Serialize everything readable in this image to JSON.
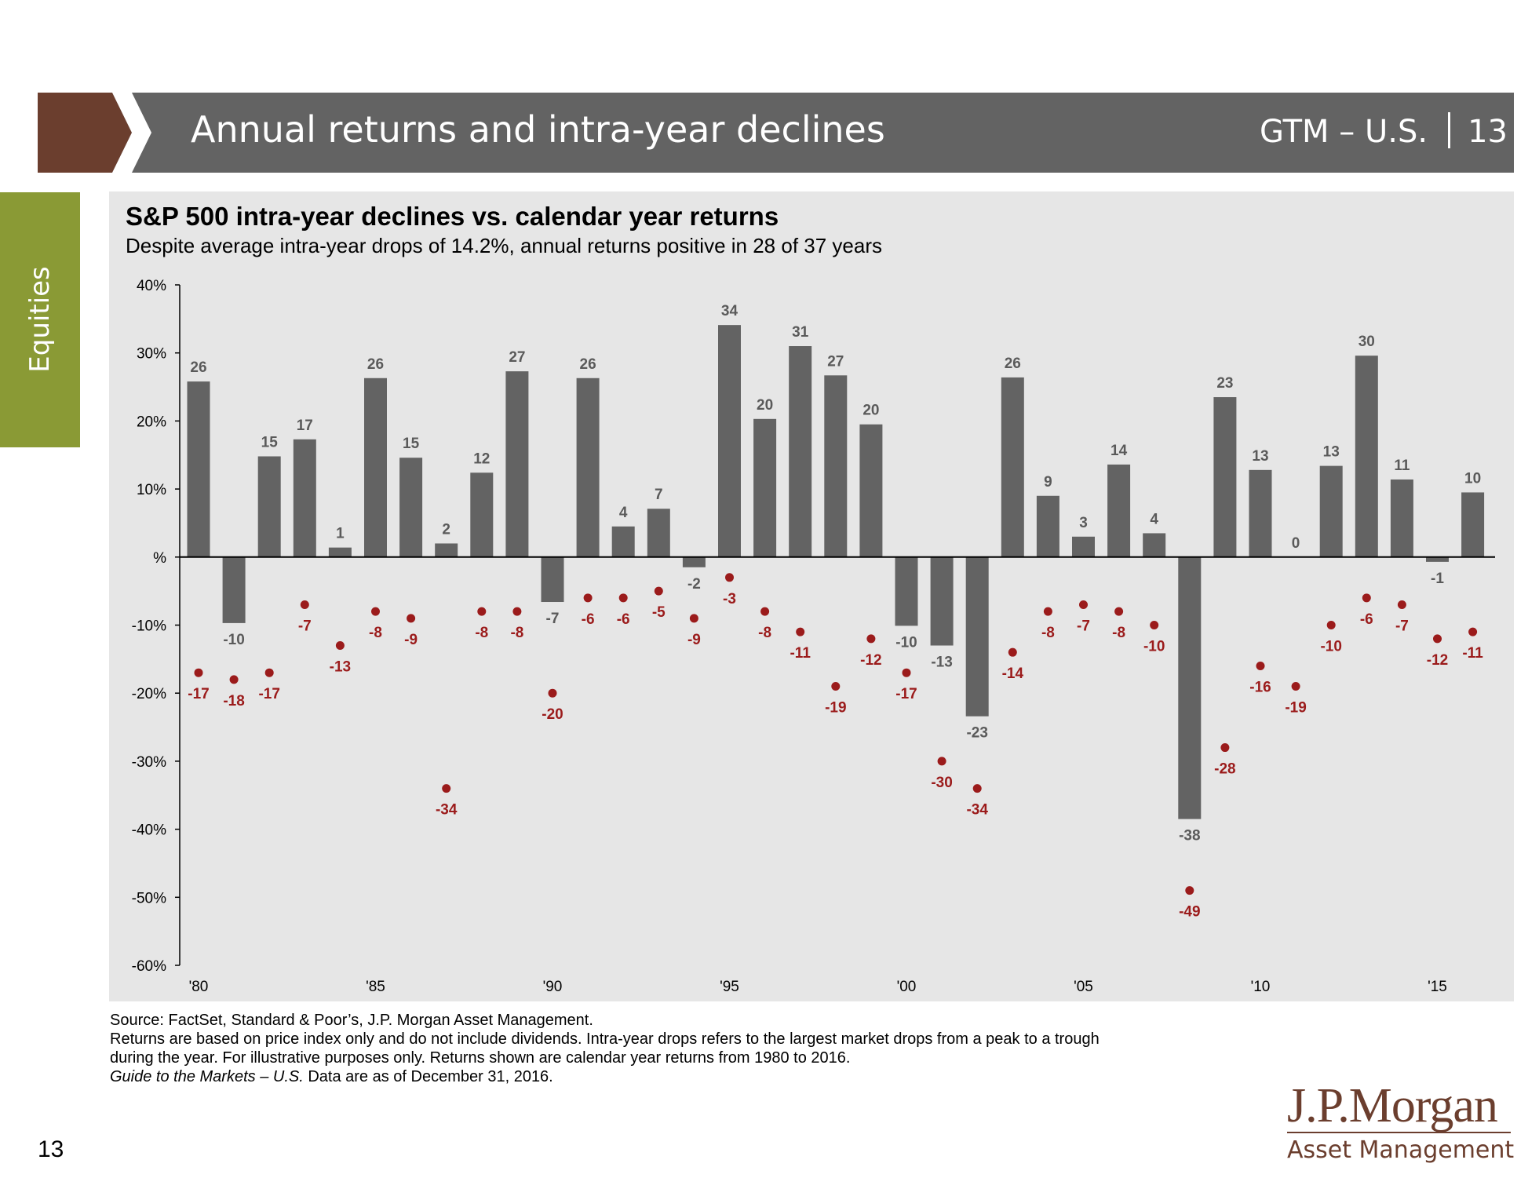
{
  "header": {
    "title": "Annual returns and intra-year declines",
    "section_code": "GTM – U.S.",
    "page_number": "13"
  },
  "side_tab": {
    "label": "Equities"
  },
  "colors": {
    "bar": "#636363",
    "dot": "#9b1b1b",
    "header": "#636363",
    "accent_brown": "#6b3e2e",
    "accent_green": "#8a9a35"
  },
  "chart_data": {
    "type": "bar",
    "title": "S&P 500 intra-year declines vs. calendar year returns",
    "subtitle": "Despite average intra-year drops of 14.2%, annual returns positive in 28 of 37 years",
    "years": [
      1980,
      1981,
      1982,
      1983,
      1984,
      1985,
      1986,
      1987,
      1988,
      1989,
      1990,
      1991,
      1992,
      1993,
      1994,
      1995,
      1996,
      1997,
      1998,
      1999,
      2000,
      2001,
      2002,
      2003,
      2004,
      2005,
      2006,
      2007,
      2008,
      2009,
      2010,
      2011,
      2012,
      2013,
      2014,
      2015,
      2016
    ],
    "series": [
      {
        "name": "Calendar year return",
        "type": "bar",
        "values": [
          25.8,
          -9.7,
          14.8,
          17.3,
          1.4,
          26.3,
          14.6,
          2.0,
          12.4,
          27.3,
          -6.6,
          26.3,
          4.5,
          7.1,
          -1.5,
          34.1,
          20.3,
          31.0,
          26.7,
          19.5,
          -10.1,
          -13.0,
          -23.4,
          26.4,
          9.0,
          3.0,
          13.6,
          3.5,
          -38.5,
          23.5,
          12.8,
          0.0,
          13.4,
          29.6,
          11.4,
          -0.7,
          9.5
        ],
        "labels": [
          "26",
          "-10",
          "15",
          "17",
          "1",
          "26",
          "15",
          "2",
          "12",
          "27",
          "-7",
          "26",
          "4",
          "7",
          "-2",
          "34",
          "20",
          "31",
          "27",
          "20",
          "-10",
          "-13",
          "-23",
          "26",
          "9",
          "3",
          "14",
          "4",
          "-38",
          "23",
          "13",
          "0",
          "13",
          "30",
          "11",
          "-1",
          "10"
        ]
      },
      {
        "name": "Intra-year decline",
        "type": "scatter",
        "values": [
          -17,
          -18,
          -17,
          -7,
          -13,
          -8,
          -9,
          -34,
          -8,
          -8,
          -20,
          -6,
          -6,
          -5,
          -9,
          -3,
          -8,
          -11,
          -19,
          -12,
          -17,
          -30,
          -34,
          -14,
          -8,
          -7,
          -8,
          -10,
          -49,
          -28,
          -16,
          -19,
          -10,
          -6,
          -7,
          -12,
          -11
        ],
        "labels": [
          "-17",
          "-18",
          "-17",
          "-7",
          "-13",
          "-8",
          "-9",
          "-34",
          "-8",
          "-8",
          "-20",
          "-6",
          "-6",
          "-5",
          "-9",
          "-3",
          "-8",
          "-11",
          "-19",
          "-12",
          "-17",
          "-30",
          "-34",
          "-14",
          "-8",
          "-7",
          "-8",
          "-10",
          "-49",
          "-28",
          "-16",
          "-19",
          "-10",
          "-6",
          "-7",
          "-12",
          "-11"
        ]
      }
    ],
    "y_ticks": [
      40,
      30,
      20,
      10,
      0,
      -10,
      -20,
      -30,
      -40,
      -50,
      -60
    ],
    "y_tick_labels": [
      "40%",
      "30%",
      "20%",
      "10%",
      "%",
      "-10%",
      "-20%",
      "-30%",
      "-40%",
      "-50%",
      "-60%"
    ],
    "ylim": [
      -60,
      40
    ],
    "x_ticks": [
      1980,
      1985,
      1990,
      1995,
      2000,
      2005,
      2010,
      2015
    ],
    "x_tick_labels": [
      "'80",
      "'85",
      "'90",
      "'95",
      "'00",
      "'05",
      "'10",
      "'15"
    ],
    "xlabel": "",
    "ylabel": "",
    "grid": false
  },
  "footnote": {
    "source": "Source: FactSet, Standard & Poor’s, J.P. Morgan Asset Management.",
    "line2": "Returns are based on price index only and do not include dividends. Intra-year drops refers to the largest market drops from a peak to a trough",
    "line3": "during the year. For illustrative purposes only. Returns shown are calendar year returns from 1980 to 2016.",
    "guide_italic": "Guide to the Markets – U.S.",
    "guide_rest": " Data are as of December 31, 2016."
  },
  "page_footer": "13",
  "logo": {
    "name": "J.P.Morgan",
    "sub": "Asset Management"
  }
}
